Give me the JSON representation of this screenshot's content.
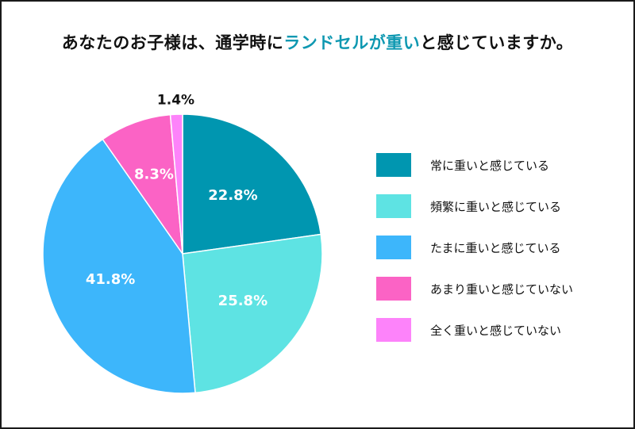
{
  "title_parts": {
    "before": "あなたのお子様は、通学時に",
    "highlight": "ランドセルが重い",
    "after": "と感じていますか。"
  },
  "colors": {
    "title_highlight": "#0e98b1",
    "series": [
      "#0096b0",
      "#5ee3e3",
      "#3db6fb",
      "#fb63c5",
      "#fd83fa"
    ]
  },
  "chart_data": {
    "type": "pie",
    "title": "あなたのお子様は、通学時にランドセルが重いと感じていますか。",
    "start": "12 o'clock",
    "direction": "clockwise",
    "legend_position": "right",
    "categories": [
      "常に重いと感じている",
      "頻繁に重いと感じている",
      "たまに重いと感じている",
      "あまり重いと感じていない",
      "全く重いと感じていない"
    ],
    "values": [
      22.8,
      25.8,
      41.8,
      8.3,
      1.4
    ],
    "labels": [
      "22.8%",
      "25.8%",
      "41.8%",
      "8.3%",
      "1.4%"
    ]
  }
}
